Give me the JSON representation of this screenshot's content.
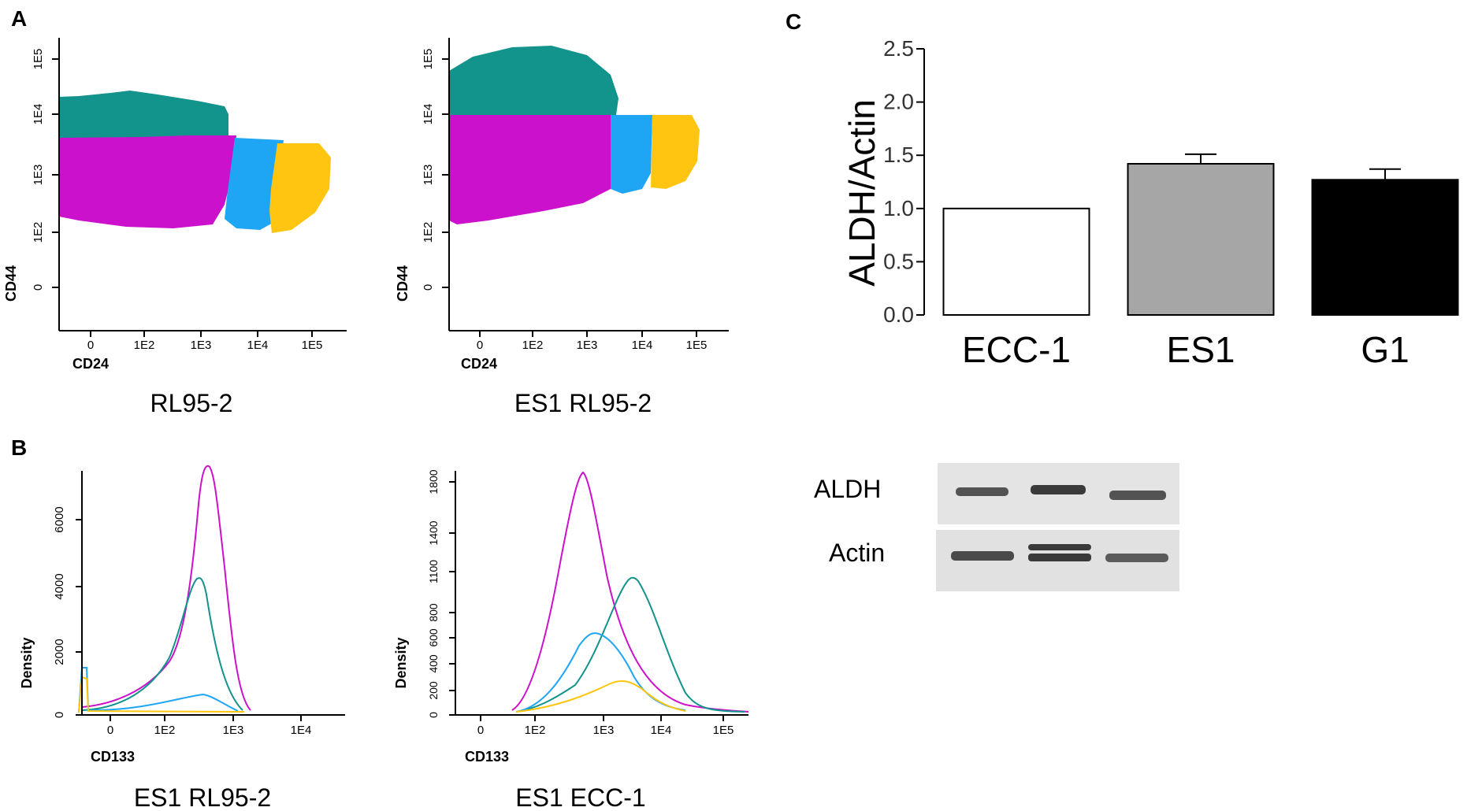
{
  "panels": {
    "A": {
      "label": "A",
      "plots": [
        {
          "title": "RL95-2",
          "xlabel": "CD24",
          "ylabel": "CD44"
        },
        {
          "title": "ES1 RL95-2",
          "xlabel": "CD24",
          "ylabel": "CD44"
        }
      ],
      "x_ticks": [
        "0",
        "1E2",
        "1E3",
        "1E4",
        "1E5"
      ],
      "y_ticks": [
        "0",
        "1E2",
        "1E3",
        "1E4",
        "1E5"
      ],
      "colors": {
        "teal": "#12938c",
        "magenta": "#cc11cc",
        "blue": "#1ea6f5",
        "yellow": "#ffc510"
      }
    },
    "B": {
      "label": "B",
      "plots": [
        {
          "title": "ES1 RL95-2",
          "xlabel": "CD133",
          "ylabel": "Density",
          "y_ticks": [
            "0",
            "2000",
            "4000",
            "6000"
          ],
          "x_ticks": [
            "0",
            "1E2",
            "1E3",
            "1E4"
          ]
        },
        {
          "title": "ES1 ECC-1",
          "xlabel": "CD133",
          "ylabel": "Density",
          "y_ticks": [
            "0",
            "200",
            "400",
            "600",
            "800",
            "1100",
            "1400",
            "1800"
          ],
          "x_ticks": [
            "0",
            "1E2",
            "1E3",
            "1E4",
            "1E5"
          ]
        }
      ]
    },
    "C": {
      "label": "C",
      "ylabel": "ALDH/Actin",
      "western_labels": [
        "ALDH",
        "Actin"
      ]
    }
  },
  "chart_data": {
    "type": "bar",
    "categories": [
      "ECC-1",
      "ES1",
      "G1"
    ],
    "values": [
      1.0,
      1.42,
      1.27
    ],
    "errors": [
      0,
      0.09,
      0.1
    ],
    "colors": [
      "#ffffff",
      "#a6a6a6",
      "#000000"
    ],
    "ylabel": "ALDH/Actin",
    "ylim": [
      0,
      2.5
    ],
    "yticks": [
      "0.0",
      "0.5",
      "1.0",
      "1.5",
      "2.0",
      "2.5"
    ]
  }
}
